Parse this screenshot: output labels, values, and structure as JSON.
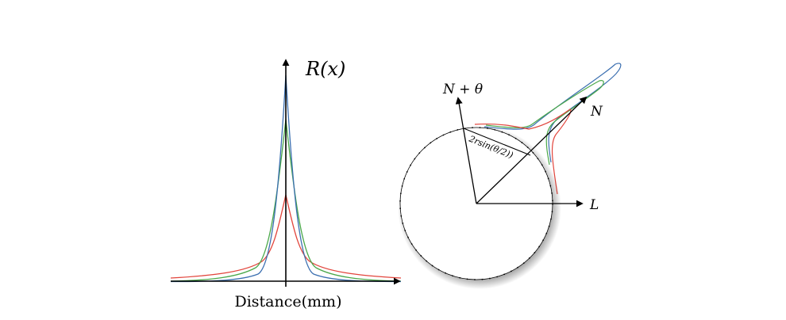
{
  "left_panel": {
    "y_axis_label": "R(x)",
    "x_axis_label": "Distance(mm)",
    "curve_colors": {
      "blue": "#3b6fb0",
      "green": "#4aa84a",
      "red": "#e2453c"
    }
  },
  "right_panel": {
    "label_n_theta": "N + θ",
    "label_n": "N",
    "label_l": "L",
    "chord_label": "2rsin(θ/2))",
    "lobe_colors": {
      "blue": "#3b6fb0",
      "green": "#4aa84a",
      "red": "#e2453c"
    }
  }
}
